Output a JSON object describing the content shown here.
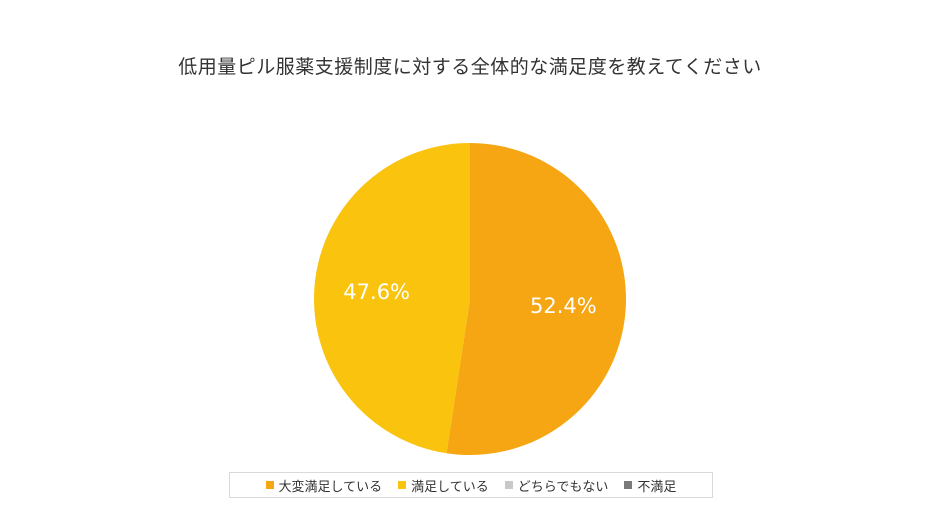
{
  "chart_data": {
    "type": "pie",
    "title": "低用量ピル服薬支援制度に対する全体的な満足度を教えてください",
    "categories": [
      "大変満足している",
      "満足している",
      "どちらでもない",
      "不満足"
    ],
    "values": [
      52.4,
      47.6,
      0,
      0
    ],
    "data_labels": [
      "52.4%",
      "47.6%",
      "",
      ""
    ],
    "colors": [
      "#F5A612",
      "#F9C30E",
      "#C8C8C8",
      "#7A7A7A"
    ],
    "start_angle_deg": 0,
    "direction": "clockwise",
    "legend_position": "bottom"
  }
}
